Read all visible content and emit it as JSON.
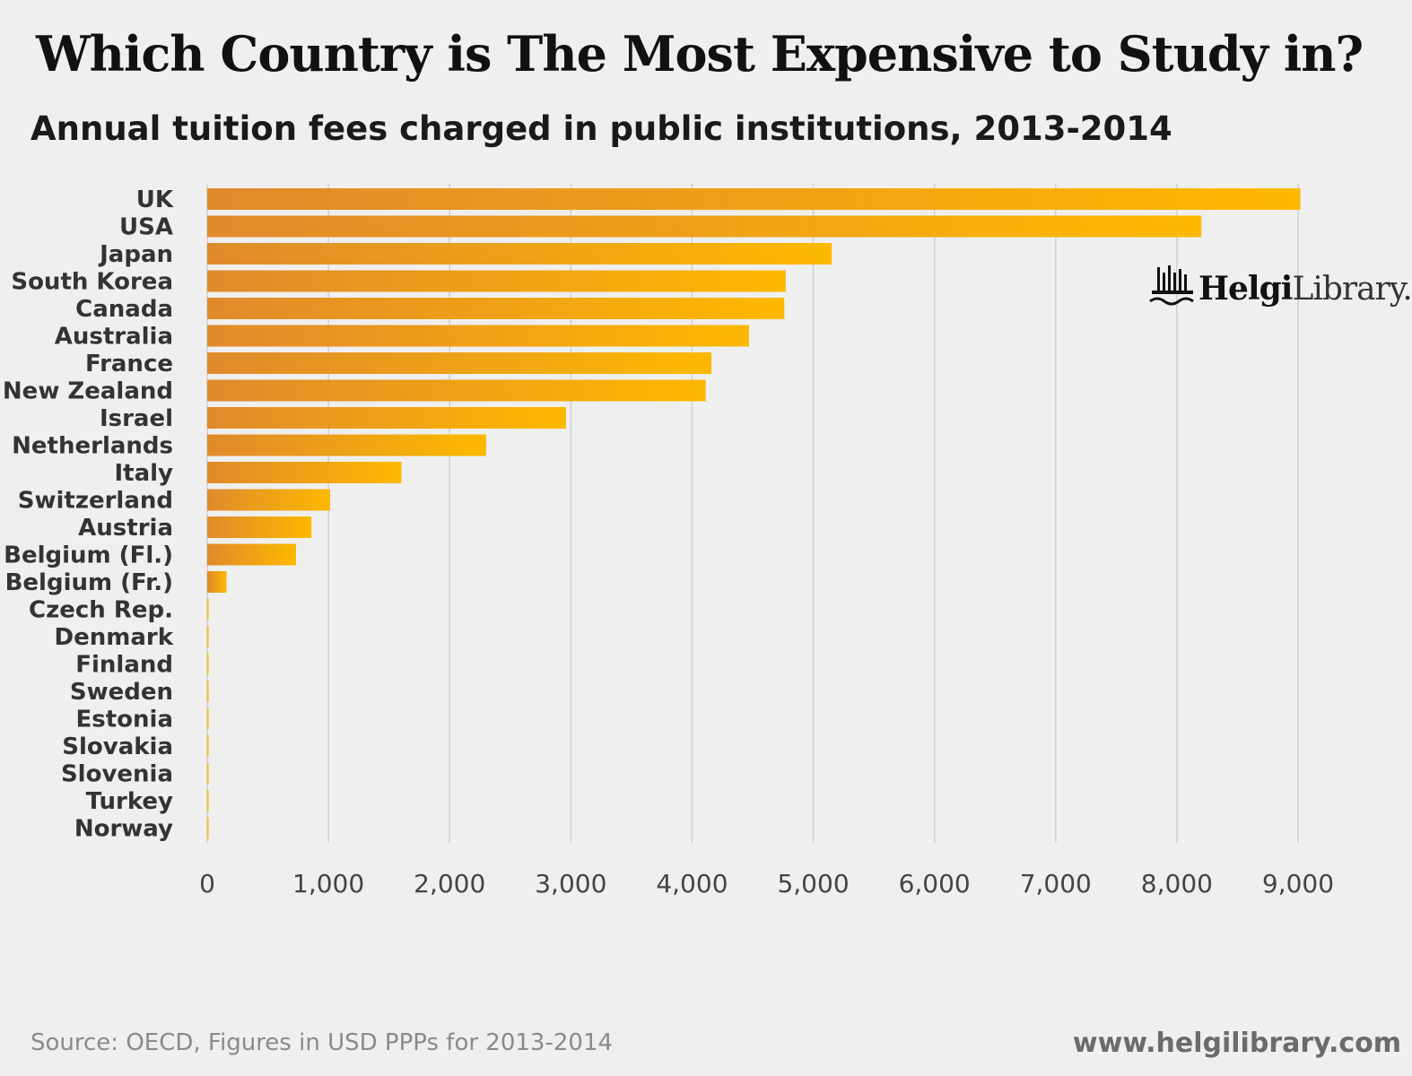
{
  "header": {
    "title": "Which Country is The Most Expensive to Study in?",
    "subtitle": "Annual tuition fees charged in public institutions, 2013-2014"
  },
  "logo": {
    "icon": "library-building-icon",
    "text_bold": "Helgi",
    "text_light": "Library."
  },
  "footer": {
    "source": "Source: OECD, Figures in USD PPPs for 2013-2014",
    "website": "www.helgilibrary.com"
  },
  "colors": {
    "bar_start": "#e08a2c",
    "bar_end": "#fcb900",
    "grid": "#d0d0d0",
    "label": "#333333",
    "tick": "#444444"
  },
  "chart_data": {
    "type": "bar",
    "orientation": "horizontal",
    "categories": [
      "UK",
      "USA",
      "Japan",
      "South Korea",
      "Canada",
      "Australia",
      "France",
      "New Zealand",
      "Israel",
      "Netherlands",
      "Italy",
      "Switzerland",
      "Austria",
      "Belgium (Fl.)",
      "Belgium (Fr.)",
      "Czech Rep.",
      "Denmark",
      "Finland",
      "Sweden",
      "Estonia",
      "Slovakia",
      "Slovenia",
      "Turkey",
      "Norway"
    ],
    "values": [
      9019,
      8202,
      5152,
      4773,
      4761,
      4470,
      4160,
      4113,
      2960,
      2301,
      1602,
      1014,
      860,
      733,
      159,
      0,
      0,
      0,
      0,
      0,
      0,
      0,
      0,
      0
    ],
    "xlim": [
      0,
      9000
    ],
    "xticks": [
      "0",
      "1,000",
      "2,000",
      "3,000",
      "4,000",
      "5,000",
      "6,000",
      "7,000",
      "8,000",
      "9,000"
    ],
    "xtick_values": [
      0,
      1000,
      2000,
      3000,
      4000,
      5000,
      6000,
      7000,
      8000,
      9000
    ],
    "grid": true,
    "legend": false
  }
}
